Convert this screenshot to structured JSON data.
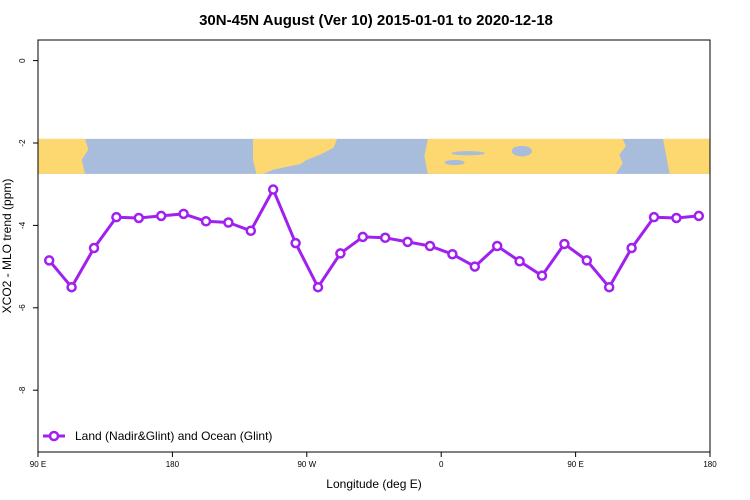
{
  "chart_data": {
    "type": "line",
    "title": "30N-45N August (Ver 10)   2015-01-01 to 2020-12-18",
    "xlabel": "Longitude (deg E)",
    "ylabel": "XCO2 - MLO trend (ppm)",
    "x_ticks": [
      {
        "value": 90,
        "label": "90 E"
      },
      {
        "value": 180,
        "label": "180"
      },
      {
        "value": 270,
        "label": "90 W"
      },
      {
        "value": 360,
        "label": "0"
      },
      {
        "value": 450,
        "label": "90 E"
      },
      {
        "value": 540,
        "label": "180"
      }
    ],
    "y_ticks": [
      0,
      -2,
      -4,
      -6,
      -8
    ],
    "xlim": [
      90,
      540
    ],
    "ylim": [
      -9.5,
      0.5
    ],
    "grid": false,
    "legend_position": "bottom-left",
    "series": [
      {
        "name": "Land (Nadir&Glint) and Ocean (Glint)",
        "color": "#a020f0",
        "x": [
          97.5,
          112.5,
          127.5,
          142.5,
          157.5,
          172.5,
          187.5,
          202.5,
          217.5,
          232.5,
          247.5,
          262.5,
          277.5,
          292.5,
          307.5,
          322.5,
          337.5,
          352.5,
          367.5,
          382.5,
          397.5,
          412.5,
          427.5,
          442.5,
          457.5,
          472.5,
          487.5,
          502.5,
          517.5,
          532.5
        ],
        "values": [
          -4.85,
          -5.5,
          -4.55,
          -3.8,
          -3.82,
          -3.77,
          -3.72,
          -3.9,
          -3.93,
          -4.13,
          -3.13,
          -4.43,
          -5.5,
          -4.68,
          -4.28,
          -4.3,
          -4.4,
          -4.5,
          -4.7,
          -5.0,
          -4.5,
          -4.87,
          -5.22,
          -4.45,
          -4.85,
          -5.5,
          -4.55,
          -3.8,
          -3.82,
          -3.77
        ]
      }
    ],
    "map_band": {
      "y_top": -1.9,
      "y_bottom": -2.75,
      "ocean_color": "#a8bcdc",
      "land_color": "#fdd870"
    }
  }
}
